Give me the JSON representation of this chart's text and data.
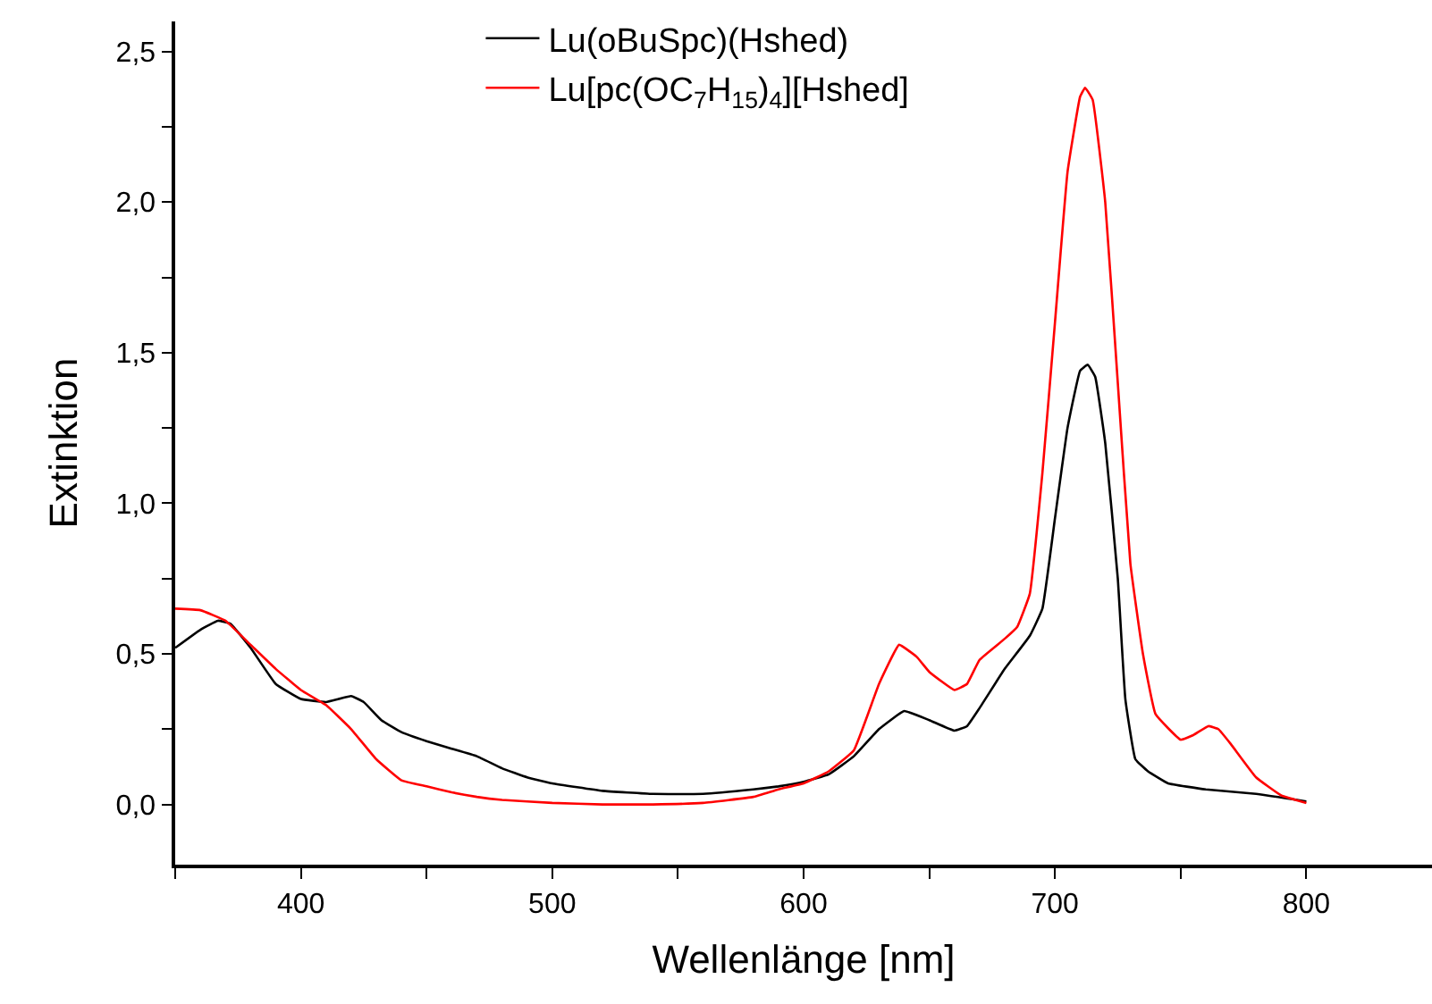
{
  "chart_data": {
    "type": "line",
    "xlabel": "Wellenlänge [nm]",
    "ylabel": "Extinktion",
    "xlim": [
      350,
      850
    ],
    "xticks": [
      {
        "value": 350,
        "label": null
      },
      400,
      {
        "value": 450,
        "label": null
      },
      500,
      {
        "value": 550,
        "label": null
      },
      600,
      {
        "value": 650,
        "label": null
      },
      700,
      {
        "value": 750,
        "label": null
      },
      800
    ],
    "ylim": [
      -0.2,
      2.6
    ],
    "yticks": [
      {
        "value": 0.0,
        "label": "0,0"
      },
      {
        "value": 0.25,
        "label": null
      },
      {
        "value": 0.5,
        "label": "0,5"
      },
      {
        "value": 0.75,
        "label": null
      },
      {
        "value": 1.0,
        "label": "1,0"
      },
      {
        "value": 1.25,
        "label": null
      },
      {
        "value": 1.5,
        "label": "1,5"
      },
      {
        "value": 1.75,
        "label": null
      },
      {
        "value": 2.0,
        "label": "2,0"
      },
      {
        "value": 2.25,
        "label": null
      },
      {
        "value": 2.5,
        "label": "2,5"
      }
    ],
    "legend": "top",
    "marker": "none",
    "line_style": "solid",
    "series": [
      {
        "name": "Lu(oBuSpc)(Hshed)",
        "color": "#000000",
        "x": [
          350,
          360,
          367,
          372,
          380,
          390,
          400,
          410,
          415,
          420,
          425,
          432,
          440,
          450,
          460,
          470,
          480,
          490,
          500,
          520,
          540,
          560,
          580,
          590,
          600,
          610,
          620,
          630,
          640,
          650,
          660,
          665,
          670,
          680,
          690,
          695,
          700,
          705,
          710,
          713,
          716,
          720,
          725,
          728,
          732,
          737,
          745,
          760,
          780,
          800
        ],
        "values": [
          0.52,
          0.58,
          0.61,
          0.6,
          0.52,
          0.4,
          0.35,
          0.34,
          0.35,
          0.36,
          0.34,
          0.28,
          0.24,
          0.21,
          0.185,
          0.16,
          0.12,
          0.09,
          0.07,
          0.045,
          0.035,
          0.035,
          0.05,
          0.06,
          0.075,
          0.1,
          0.16,
          0.25,
          0.31,
          0.28,
          0.245,
          0.26,
          0.32,
          0.45,
          0.56,
          0.65,
          0.95,
          1.25,
          1.44,
          1.46,
          1.42,
          1.2,
          0.75,
          0.35,
          0.15,
          0.11,
          0.07,
          0.05,
          0.035,
          0.01
        ]
      },
      {
        "name": "Lu[pc(OC$_{7}$H$_{15}$)$_{4}$][Hshed]",
        "color": "#ff0000",
        "x": [
          350,
          360,
          370,
          380,
          390,
          400,
          410,
          420,
          430,
          440,
          450,
          460,
          470,
          480,
          500,
          520,
          540,
          560,
          580,
          590,
          600,
          610,
          620,
          630,
          638,
          645,
          650,
          660,
          665,
          670,
          680,
          685,
          690,
          695,
          700,
          705,
          710,
          712,
          715,
          720,
          725,
          730,
          735,
          740,
          750,
          755,
          761,
          765,
          770,
          780,
          790,
          800
        ],
        "values": [
          0.65,
          0.645,
          0.61,
          0.53,
          0.45,
          0.38,
          0.33,
          0.25,
          0.15,
          0.08,
          0.06,
          0.04,
          0.025,
          0.015,
          0.005,
          0.0,
          0.0,
          0.005,
          0.025,
          0.05,
          0.07,
          0.11,
          0.18,
          0.4,
          0.53,
          0.49,
          0.44,
          0.38,
          0.4,
          0.48,
          0.55,
          0.59,
          0.7,
          1.1,
          1.6,
          2.1,
          2.35,
          2.38,
          2.34,
          2.0,
          1.4,
          0.8,
          0.5,
          0.3,
          0.215,
          0.23,
          0.26,
          0.25,
          0.2,
          0.09,
          0.03,
          0.005
        ]
      }
    ]
  }
}
